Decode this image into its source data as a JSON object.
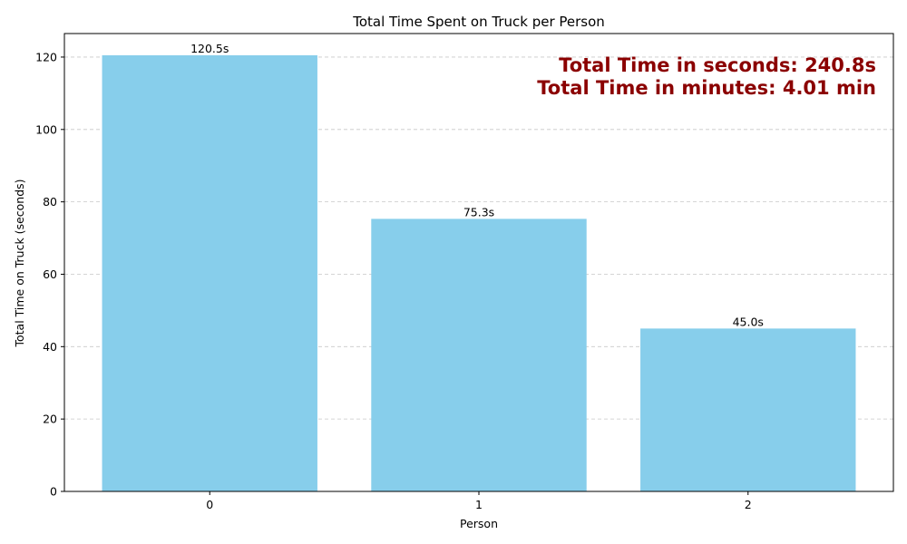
{
  "chart_data": {
    "type": "bar",
    "title": "Total Time Spent on Truck per Person",
    "xlabel": "Person",
    "ylabel": "Total Time on Truck (seconds)",
    "categories": [
      "0",
      "1",
      "2"
    ],
    "values": [
      120.5,
      75.3,
      45.0
    ],
    "data_labels": [
      "120.5s",
      "75.3s",
      "45.0s"
    ],
    "ylim": [
      0,
      126.5
    ],
    "yticks": [
      0,
      20,
      40,
      60,
      80,
      100,
      120
    ],
    "ytick_labels": [
      "0",
      "20",
      "40",
      "60",
      "80",
      "100",
      "120"
    ],
    "grid": "y-dashed",
    "bar_color": "#87CEEB",
    "annotations": [
      "Total Time in seconds: 240.8s",
      "Total Time in minutes: 4.01 min"
    ],
    "annotation_color": "#8B0000",
    "annotation_placement": "top-right"
  }
}
